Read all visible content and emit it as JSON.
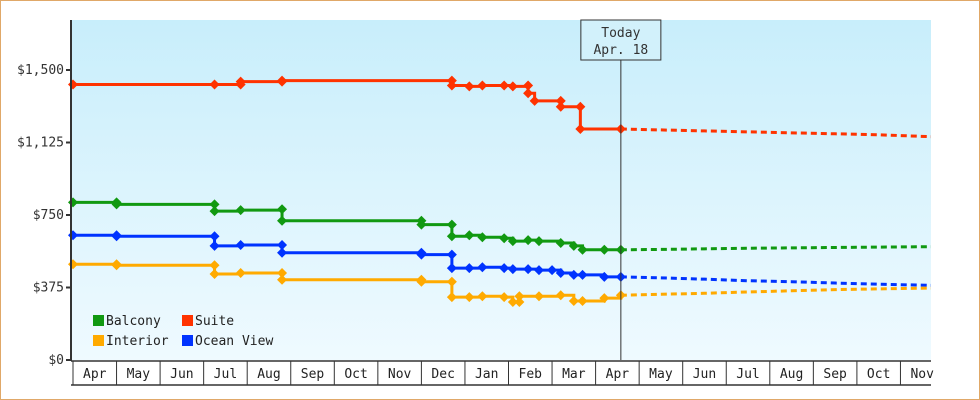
{
  "chart_data": {
    "type": "line",
    "title": "",
    "xlabel": "",
    "ylabel": "",
    "ylim": [
      0,
      1750
    ],
    "y_ticks": [
      {
        "value": 0,
        "label": "$0"
      },
      {
        "value": 375,
        "label": "$375"
      },
      {
        "value": 750,
        "label": "$750"
      },
      {
        "value": 1125,
        "label": "$1,125"
      },
      {
        "value": 1500,
        "label": "$1,500"
      }
    ],
    "x_months": [
      "Apr",
      "May",
      "Jun",
      "Jul",
      "Aug",
      "Sep",
      "Oct",
      "Nov",
      "Dec",
      "Jan",
      "Feb",
      "Mar",
      "Apr",
      "May",
      "Jun",
      "Jul",
      "Aug",
      "Sep",
      "Oct",
      "Nov"
    ],
    "today_marker": {
      "line1": "Today",
      "line2": "Apr. 18",
      "x_month_index": 12.58
    },
    "grid": false,
    "legend_position": "bottom-left inside plot",
    "legend": [
      {
        "name": "Balcony",
        "color": "#119911"
      },
      {
        "name": "Suite",
        "color": "#ff3300"
      },
      {
        "name": "Interior",
        "color": "#ffaa00"
      },
      {
        "name": "Ocean View",
        "color": "#0033ff"
      }
    ],
    "series": [
      {
        "name": "Suite",
        "color": "#ff3300",
        "history": [
          [
            0.0,
            1425
          ],
          [
            3.25,
            1425
          ],
          [
            3.85,
            1425
          ],
          [
            3.85,
            1440
          ],
          [
            4.8,
            1440
          ],
          [
            4.8,
            1445
          ],
          [
            8.7,
            1445
          ],
          [
            8.7,
            1420
          ],
          [
            9.1,
            1415
          ],
          [
            9.4,
            1420
          ],
          [
            9.9,
            1420
          ],
          [
            10.1,
            1415
          ],
          [
            10.45,
            1420
          ],
          [
            10.45,
            1380
          ],
          [
            10.6,
            1340
          ],
          [
            11.2,
            1340
          ],
          [
            11.2,
            1310
          ],
          [
            11.65,
            1310
          ],
          [
            11.65,
            1195
          ],
          [
            12.58,
            1195
          ]
        ],
        "forecast": [
          [
            12.58,
            1195
          ],
          [
            13.5,
            1190
          ],
          [
            14.5,
            1185
          ],
          [
            15.5,
            1180
          ],
          [
            16.5,
            1175
          ],
          [
            17.5,
            1170
          ],
          [
            18.5,
            1165
          ],
          [
            19.7,
            1155
          ]
        ]
      },
      {
        "name": "Balcony",
        "color": "#119911",
        "history": [
          [
            0.0,
            815
          ],
          [
            1.0,
            815
          ],
          [
            1.0,
            805
          ],
          [
            3.25,
            805
          ],
          [
            3.25,
            770
          ],
          [
            3.85,
            775
          ],
          [
            4.8,
            780
          ],
          [
            4.8,
            720
          ],
          [
            8.0,
            720
          ],
          [
            8.0,
            700
          ],
          [
            8.7,
            700
          ],
          [
            8.7,
            640
          ],
          [
            9.1,
            645
          ],
          [
            9.4,
            635
          ],
          [
            9.9,
            630
          ],
          [
            10.1,
            615
          ],
          [
            10.45,
            620
          ],
          [
            10.7,
            615
          ],
          [
            11.2,
            605
          ],
          [
            11.5,
            590
          ],
          [
            11.7,
            570
          ],
          [
            12.2,
            570
          ],
          [
            12.58,
            570
          ]
        ],
        "forecast": [
          [
            12.58,
            570
          ],
          [
            13.5,
            572
          ],
          [
            14.5,
            575
          ],
          [
            15.5,
            578
          ],
          [
            16.5,
            580
          ],
          [
            17.5,
            582
          ],
          [
            18.5,
            584
          ],
          [
            19.7,
            586
          ]
        ]
      },
      {
        "name": "Ocean View",
        "color": "#0033ff",
        "history": [
          [
            0.0,
            645
          ],
          [
            1.0,
            645
          ],
          [
            1.0,
            640
          ],
          [
            3.25,
            640
          ],
          [
            3.25,
            590
          ],
          [
            3.85,
            595
          ],
          [
            4.8,
            595
          ],
          [
            4.8,
            555
          ],
          [
            8.0,
            555
          ],
          [
            8.0,
            545
          ],
          [
            8.7,
            545
          ],
          [
            8.7,
            475
          ],
          [
            9.1,
            475
          ],
          [
            9.4,
            480
          ],
          [
            9.9,
            475
          ],
          [
            10.1,
            470
          ],
          [
            10.45,
            470
          ],
          [
            10.7,
            465
          ],
          [
            11.0,
            465
          ],
          [
            11.2,
            450
          ],
          [
            11.5,
            440
          ],
          [
            11.7,
            440
          ],
          [
            12.2,
            430
          ],
          [
            12.58,
            430
          ]
        ],
        "forecast": [
          [
            12.58,
            430
          ],
          [
            13.5,
            425
          ],
          [
            14.5,
            418
          ],
          [
            15.5,
            410
          ],
          [
            16.5,
            405
          ],
          [
            17.5,
            398
          ],
          [
            18.5,
            392
          ],
          [
            19.7,
            386
          ]
        ]
      },
      {
        "name": "Interior",
        "color": "#ffaa00",
        "history": [
          [
            0.0,
            495
          ],
          [
            1.0,
            495
          ],
          [
            1.0,
            490
          ],
          [
            3.25,
            490
          ],
          [
            3.25,
            445
          ],
          [
            3.85,
            450
          ],
          [
            4.8,
            450
          ],
          [
            4.8,
            415
          ],
          [
            8.0,
            415
          ],
          [
            8.0,
            405
          ],
          [
            8.7,
            405
          ],
          [
            8.7,
            325
          ],
          [
            9.1,
            325
          ],
          [
            9.4,
            330
          ],
          [
            9.9,
            325
          ],
          [
            10.1,
            300
          ],
          [
            10.25,
            300
          ],
          [
            10.25,
            330
          ],
          [
            10.7,
            330
          ],
          [
            11.2,
            335
          ],
          [
            11.5,
            305
          ],
          [
            11.7,
            305
          ],
          [
            12.2,
            320
          ],
          [
            12.58,
            335
          ]
        ],
        "forecast": [
          [
            12.58,
            335
          ],
          [
            13.5,
            340
          ],
          [
            14.5,
            345
          ],
          [
            15.5,
            352
          ],
          [
            16.5,
            358
          ],
          [
            17.5,
            364
          ],
          [
            18.5,
            368
          ],
          [
            19.7,
            372
          ]
        ]
      }
    ]
  }
}
